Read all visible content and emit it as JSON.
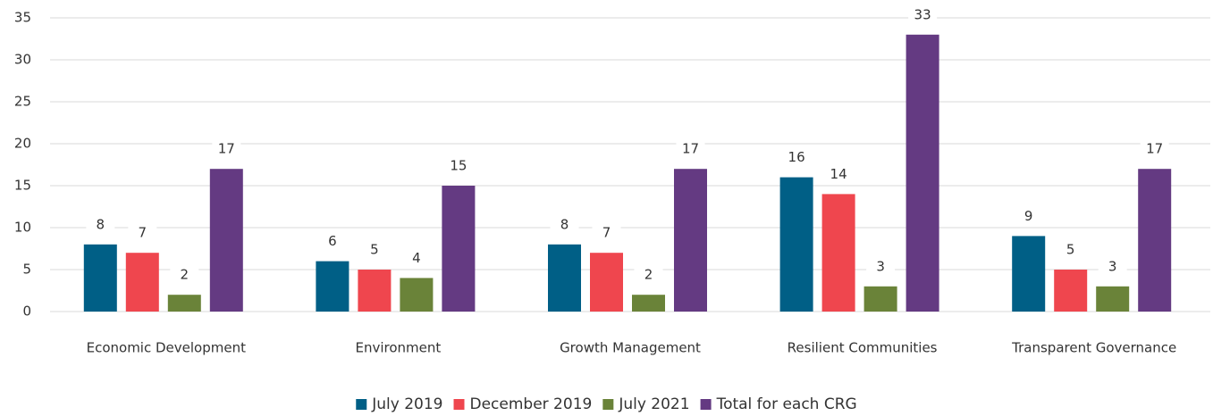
{
  "chart_data": {
    "type": "bar",
    "categories": [
      "Economic Development",
      "Environment",
      "Growth Management",
      "Resilient Communities",
      "Transparent Governance"
    ],
    "series": [
      {
        "name": "July 2019",
        "color": "#005f86",
        "values": [
          8,
          6,
          8,
          16,
          9
        ]
      },
      {
        "name": "December 2019",
        "color": "#ef464e",
        "values": [
          7,
          5,
          7,
          14,
          5
        ]
      },
      {
        "name": "July 2021",
        "color": "#6a8339",
        "values": [
          2,
          4,
          2,
          3,
          3
        ]
      },
      {
        "name": "Total for each CRG",
        "color": "#643a82",
        "values": [
          17,
          15,
          17,
          33,
          17
        ]
      }
    ],
    "ylim": [
      0,
      35
    ],
    "yticks": [
      0,
      5,
      10,
      15,
      20,
      25,
      30,
      35
    ],
    "grid": true,
    "legend": "bottom",
    "data_labels": true
  }
}
